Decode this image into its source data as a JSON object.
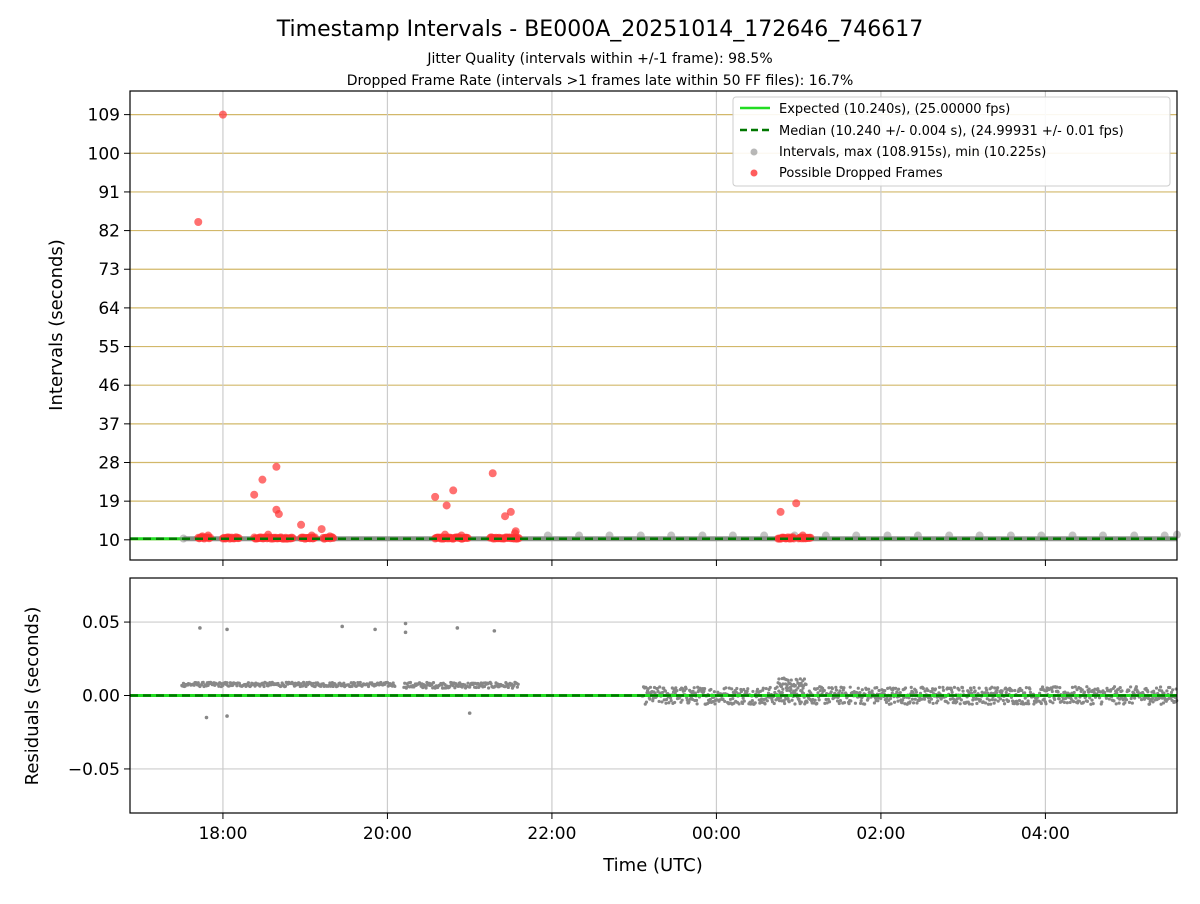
{
  "figure": {
    "title": "Timestamp Intervals - BE000A_20251014_172646_746617",
    "subtitle_1": "Jitter Quality (intervals within +/-1 frame): 98.5%",
    "subtitle_2": "Dropped Frame Rate (intervals >1 frames late within 50 FF files): 16.7%",
    "colors": {
      "expected": "#22dd22",
      "median": "#007700",
      "intervals": "#888888",
      "dropped": "#ff3333",
      "hgrid_top": "#d2b86a",
      "grid": "#cccccc"
    }
  },
  "chart_data": [
    {
      "type": "scatter",
      "title": "",
      "xlabel": "",
      "ylabel": "Intervals (seconds)",
      "xlim_hours": [
        16.87,
        29.6
      ],
      "ylim": [
        5.3,
        114.5
      ],
      "yticks": [
        10,
        19,
        28,
        37,
        46,
        55,
        64,
        73,
        82,
        91,
        100,
        109
      ],
      "ytick_labels": [
        "10",
        "19",
        "28",
        "37",
        "46",
        "55",
        "64",
        "73",
        "82",
        "91",
        "100",
        "109"
      ],
      "legend": {
        "position": "top-right",
        "entries": [
          "Expected (10.240s), (25.00000 fps)",
          "Median (10.240 +/- 0.004 s), (24.99931 +/- 0.01 fps)",
          "Intervals, max (108.915s), min (10.225s)",
          "Possible Dropped Frames"
        ]
      },
      "series": [
        {
          "name": "Expected",
          "style": "line",
          "y": 10.24
        },
        {
          "name": "Median",
          "style": "dashed",
          "y": 10.24
        },
        {
          "name": "Intervals",
          "style": "scatter",
          "x": [
            17.52,
            21.95,
            22.33,
            22.7,
            23.08,
            23.45,
            23.83,
            24.2,
            24.58,
            24.95,
            25.33,
            25.7,
            26.08,
            26.45,
            26.83,
            27.2,
            27.58,
            27.95,
            28.33,
            28.7,
            29.08,
            29.45,
            29.6
          ],
          "y": [
            10.3,
            11.0,
            11.0,
            11.0,
            11.0,
            11.0,
            11.0,
            11.0,
            11.0,
            11.0,
            11.0,
            11.0,
            11.0,
            11.0,
            11.0,
            11.0,
            11.0,
            11.0,
            11.0,
            11.0,
            11.0,
            11.0,
            11.2
          ]
        },
        {
          "name": "Possible Dropped Frames",
          "style": "scatter",
          "x": [
            17.7,
            18.0,
            18.38,
            18.48,
            18.65,
            18.65,
            18.68,
            18.95,
            19.2,
            20.58,
            20.72,
            20.8,
            21.28,
            21.43,
            21.5,
            21.55,
            24.78,
            24.97,
            17.75,
            17.82,
            18.55,
            19.08,
            19.3,
            20.7,
            20.9,
            21.56,
            25.05
          ],
          "y": [
            84,
            109,
            20.5,
            24,
            27,
            17,
            16,
            13.5,
            12.5,
            20,
            18,
            21.5,
            25.5,
            15.5,
            16.5,
            11.5,
            16.5,
            18.5,
            10.8,
            11.0,
            11.2,
            11.0,
            10.8,
            11.2,
            11.0,
            12.0,
            11.0
          ],
          "clusters_x_hours": [
            [
              17.7,
              17.85
            ],
            [
              18.0,
              18.2
            ],
            [
              18.38,
              18.85
            ],
            [
              18.95,
              19.12
            ],
            [
              19.22,
              19.35
            ],
            [
              20.58,
              20.98
            ],
            [
              21.25,
              21.6
            ],
            [
              24.75,
              24.95
            ],
            [
              25.0,
              25.15
            ]
          ],
          "cluster_y": 10.24
        }
      ]
    },
    {
      "type": "scatter",
      "title": "",
      "xlabel": "Time (UTC)",
      "ylabel": "Residuals (seconds)",
      "xlim_hours": [
        16.87,
        29.6
      ],
      "ylim": [
        -0.08,
        0.08
      ],
      "yticks": [
        0.05,
        0.0,
        -0.05
      ],
      "ytick_labels": [
        "0.05",
        "0.00",
        "−0.05"
      ],
      "xticks_hours": [
        18,
        20,
        22,
        24,
        26,
        28
      ],
      "xtick_labels": [
        "18:00",
        "20:00",
        "22:00",
        "00:00",
        "02:00",
        "04:00"
      ],
      "series": [
        {
          "name": "Residuals",
          "style": "scatter",
          "segments": [
            {
              "x_range": [
                17.5,
                20.1
              ],
              "y_band": [
                0.006,
                0.009
              ]
            },
            {
              "x_range": [
                20.2,
                21.6
              ],
              "y_band": [
                0.005,
                0.009
              ]
            },
            {
              "x_range": [
                23.1,
                29.6
              ],
              "y_band": [
                -0.006,
                0.006
              ]
            },
            {
              "x_range": [
                24.75,
                25.1
              ],
              "y_band": [
                0.006,
                0.012
              ]
            }
          ],
          "outliers_x": [
            17.72,
            18.05,
            19.45,
            19.85,
            20.22,
            20.22,
            20.85,
            21.3,
            17.8,
            18.05,
            21.0
          ],
          "outliers_y": [
            0.046,
            0.045,
            0.047,
            0.045,
            0.049,
            0.043,
            0.046,
            0.044,
            -0.015,
            -0.014,
            -0.012
          ]
        },
        {
          "name": "Expected",
          "style": "line",
          "y": 0.0
        },
        {
          "name": "Median",
          "style": "dashed",
          "y": 0.0
        }
      ]
    }
  ]
}
